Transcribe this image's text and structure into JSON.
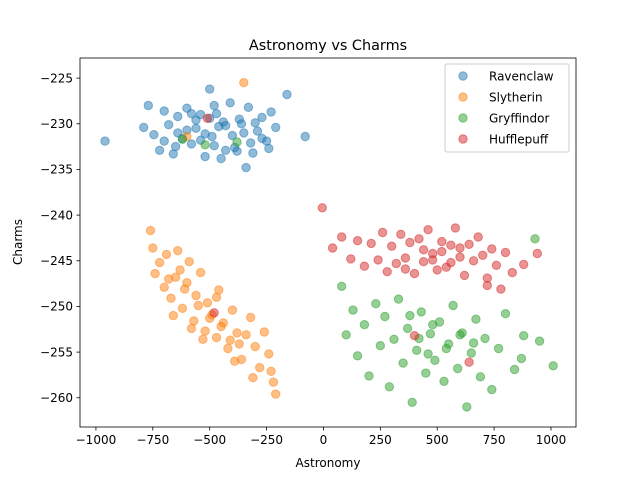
{
  "chart_data": {
    "type": "scatter",
    "title": "Astronomy vs Charms",
    "xlabel": "Astronomy",
    "ylabel": "Charms",
    "xlim": [
      -1070,
      1110
    ],
    "ylim": [
      -263.2,
      -222.8
    ],
    "xticks": [
      -1000,
      -750,
      -500,
      -250,
      0,
      250,
      500,
      750,
      1000
    ],
    "yticks": [
      -260,
      -255,
      -250,
      -245,
      -240,
      -235,
      -230,
      -225
    ],
    "grid": false,
    "legend_position": "top-right",
    "marker_alpha": 0.5,
    "series": [
      {
        "name": "Ravenclaw",
        "color": "#1f77b4",
        "points": [
          [
            -960,
            -231.9
          ],
          [
            -790,
            -230.4
          ],
          [
            -770,
            -228.0
          ],
          [
            -745,
            -231.2
          ],
          [
            -720,
            -232.9
          ],
          [
            -700,
            -228.6
          ],
          [
            -680,
            -230.1
          ],
          [
            -660,
            -233.3
          ],
          [
            -640,
            -229.2
          ],
          [
            -620,
            -231.6
          ],
          [
            -600,
            -228.3
          ],
          [
            -580,
            -232.2
          ],
          [
            -560,
            -230.5
          ],
          [
            -540,
            -229.0
          ],
          [
            -520,
            -233.6
          ],
          [
            -500,
            -226.2
          ],
          [
            -490,
            -231.4
          ],
          [
            -470,
            -228.9
          ],
          [
            -450,
            -233.8
          ],
          [
            -430,
            -230.2
          ],
          [
            -410,
            -227.7
          ],
          [
            -390,
            -232.6
          ],
          [
            -370,
            -229.5
          ],
          [
            -350,
            -231.0
          ],
          [
            -330,
            -228.2
          ],
          [
            -310,
            -233.2
          ],
          [
            -290,
            -230.8
          ],
          [
            -270,
            -229.3
          ],
          [
            -250,
            -231.9
          ],
          [
            -230,
            -228.7
          ],
          [
            -210,
            -230.4
          ],
          [
            -160,
            -226.8
          ],
          [
            -80,
            -231.4
          ],
          [
            -640,
            -231.0
          ],
          [
            -560,
            -229.6
          ],
          [
            -520,
            -231.1
          ],
          [
            -480,
            -232.4
          ],
          [
            -440,
            -229.8
          ],
          [
            -400,
            -231.3
          ],
          [
            -360,
            -230.0
          ],
          [
            -320,
            -232.1
          ],
          [
            -460,
            -230.3
          ],
          [
            -540,
            -231.8
          ],
          [
            -600,
            -230.7
          ],
          [
            -380,
            -233.0
          ],
          [
            -340,
            -234.8
          ],
          [
            -580,
            -228.9
          ],
          [
            -430,
            -232.9
          ],
          [
            -500,
            -229.4
          ],
          [
            -270,
            -231.6
          ],
          [
            -700,
            -231.9
          ],
          [
            -650,
            -232.5
          ],
          [
            -480,
            -228.0
          ],
          [
            -300,
            -229.9
          ],
          [
            -240,
            -232.7
          ]
        ]
      },
      {
        "name": "Slytherin",
        "color": "#ff7f0e",
        "points": [
          [
            -760,
            -241.7
          ],
          [
            -750,
            -243.6
          ],
          [
            -740,
            -246.4
          ],
          [
            -720,
            -245.2
          ],
          [
            -700,
            -247.9
          ],
          [
            -690,
            -244.3
          ],
          [
            -670,
            -249.1
          ],
          [
            -650,
            -246.8
          ],
          [
            -640,
            -243.9
          ],
          [
            -620,
            -250.2
          ],
          [
            -600,
            -247.4
          ],
          [
            -590,
            -245.1
          ],
          [
            -570,
            -251.6
          ],
          [
            -560,
            -248.8
          ],
          [
            -540,
            -246.3
          ],
          [
            -520,
            -252.7
          ],
          [
            -510,
            -249.6
          ],
          [
            -490,
            -250.9
          ],
          [
            -470,
            -253.4
          ],
          [
            -460,
            -248.2
          ],
          [
            -440,
            -251.8
          ],
          [
            -420,
            -254.6
          ],
          [
            -400,
            -250.4
          ],
          [
            -380,
            -252.9
          ],
          [
            -360,
            -255.8
          ],
          [
            -340,
            -253.1
          ],
          [
            -320,
            -251.2
          ],
          [
            -300,
            -254.4
          ],
          [
            -280,
            -256.7
          ],
          [
            -260,
            -252.8
          ],
          [
            -240,
            -255.2
          ],
          [
            -220,
            -258.3
          ],
          [
            -210,
            -259.6
          ],
          [
            -230,
            -257.1
          ],
          [
            -610,
            -248.1
          ],
          [
            -550,
            -249.9
          ],
          [
            -500,
            -251.3
          ],
          [
            -450,
            -252.2
          ],
          [
            -410,
            -253.7
          ],
          [
            -370,
            -254.1
          ],
          [
            -580,
            -252.4
          ],
          [
            -630,
            -246.0
          ],
          [
            -680,
            -247.0
          ],
          [
            -530,
            -253.6
          ],
          [
            -350,
            -225.5
          ],
          [
            -600,
            -231.4
          ],
          [
            -660,
            -251.0
          ],
          [
            -470,
            -249.0
          ],
          [
            -390,
            -256.0
          ],
          [
            -310,
            -257.8
          ]
        ]
      },
      {
        "name": "Gryffindor",
        "color": "#2ca02c",
        "points": [
          [
            80,
            -247.8
          ],
          [
            100,
            -253.1
          ],
          [
            130,
            -250.4
          ],
          [
            150,
            -255.4
          ],
          [
            180,
            -252.0
          ],
          [
            200,
            -257.6
          ],
          [
            230,
            -249.7
          ],
          [
            250,
            -254.3
          ],
          [
            270,
            -251.1
          ],
          [
            290,
            -258.8
          ],
          [
            310,
            -253.6
          ],
          [
            330,
            -249.2
          ],
          [
            350,
            -256.2
          ],
          [
            370,
            -252.4
          ],
          [
            390,
            -260.5
          ],
          [
            410,
            -254.8
          ],
          [
            430,
            -250.6
          ],
          [
            450,
            -257.3
          ],
          [
            470,
            -253.0
          ],
          [
            490,
            -255.9
          ],
          [
            510,
            -251.7
          ],
          [
            530,
            -258.2
          ],
          [
            550,
            -254.1
          ],
          [
            570,
            -249.9
          ],
          [
            590,
            -256.8
          ],
          [
            610,
            -252.9
          ],
          [
            630,
            -261.0
          ],
          [
            650,
            -255.1
          ],
          [
            670,
            -251.4
          ],
          [
            690,
            -257.7
          ],
          [
            710,
            -253.5
          ],
          [
            740,
            -259.1
          ],
          [
            770,
            -254.6
          ],
          [
            800,
            -250.8
          ],
          [
            840,
            -256.9
          ],
          [
            880,
            -253.2
          ],
          [
            930,
            -242.6
          ],
          [
            950,
            -253.8
          ],
          [
            1010,
            -256.5
          ],
          [
            870,
            -255.7
          ],
          [
            420,
            -253.5
          ],
          [
            480,
            -252.0
          ],
          [
            540,
            -254.6
          ],
          [
            600,
            -253.1
          ],
          [
            460,
            -255.2
          ],
          [
            380,
            -251.0
          ],
          [
            660,
            -254.0
          ],
          [
            -380,
            -232.0
          ],
          [
            -520,
            -232.3
          ],
          [
            -620,
            -231.7
          ]
        ]
      },
      {
        "name": "Hufflepuff",
        "color": "#d62728",
        "points": [
          [
            -5,
            -239.2
          ],
          [
            40,
            -243.6
          ],
          [
            80,
            -242.4
          ],
          [
            120,
            -244.8
          ],
          [
            150,
            -242.8
          ],
          [
            180,
            -245.6
          ],
          [
            210,
            -243.1
          ],
          [
            240,
            -244.9
          ],
          [
            260,
            -241.9
          ],
          [
            280,
            -246.2
          ],
          [
            300,
            -243.4
          ],
          [
            320,
            -245.3
          ],
          [
            340,
            -242.1
          ],
          [
            360,
            -244.7
          ],
          [
            380,
            -243.0
          ],
          [
            400,
            -246.4
          ],
          [
            420,
            -242.6
          ],
          [
            440,
            -245.1
          ],
          [
            460,
            -241.6
          ],
          [
            480,
            -244.2
          ],
          [
            500,
            -246.0
          ],
          [
            520,
            -242.9
          ],
          [
            540,
            -245.7
          ],
          [
            560,
            -243.3
          ],
          [
            580,
            -241.4
          ],
          [
            600,
            -244.6
          ],
          [
            620,
            -246.6
          ],
          [
            640,
            -243.2
          ],
          [
            660,
            -245.0
          ],
          [
            680,
            -242.4
          ],
          [
            700,
            -244.4
          ],
          [
            720,
            -246.9
          ],
          [
            740,
            -243.7
          ],
          [
            760,
            -245.5
          ],
          [
            780,
            -248.1
          ],
          [
            800,
            -244.1
          ],
          [
            830,
            -246.3
          ],
          [
            880,
            -245.4
          ],
          [
            940,
            -244.2
          ],
          [
            720,
            -247.7
          ],
          [
            480,
            -244.9
          ],
          [
            520,
            -244.0
          ],
          [
            560,
            -245.2
          ],
          [
            600,
            -243.6
          ],
          [
            440,
            -243.8
          ],
          [
            -510,
            -229.4
          ],
          [
            -480,
            -250.7
          ],
          [
            400,
            -253.2
          ],
          [
            640,
            -256.1
          ],
          [
            360,
            -245.9
          ]
        ]
      }
    ]
  }
}
